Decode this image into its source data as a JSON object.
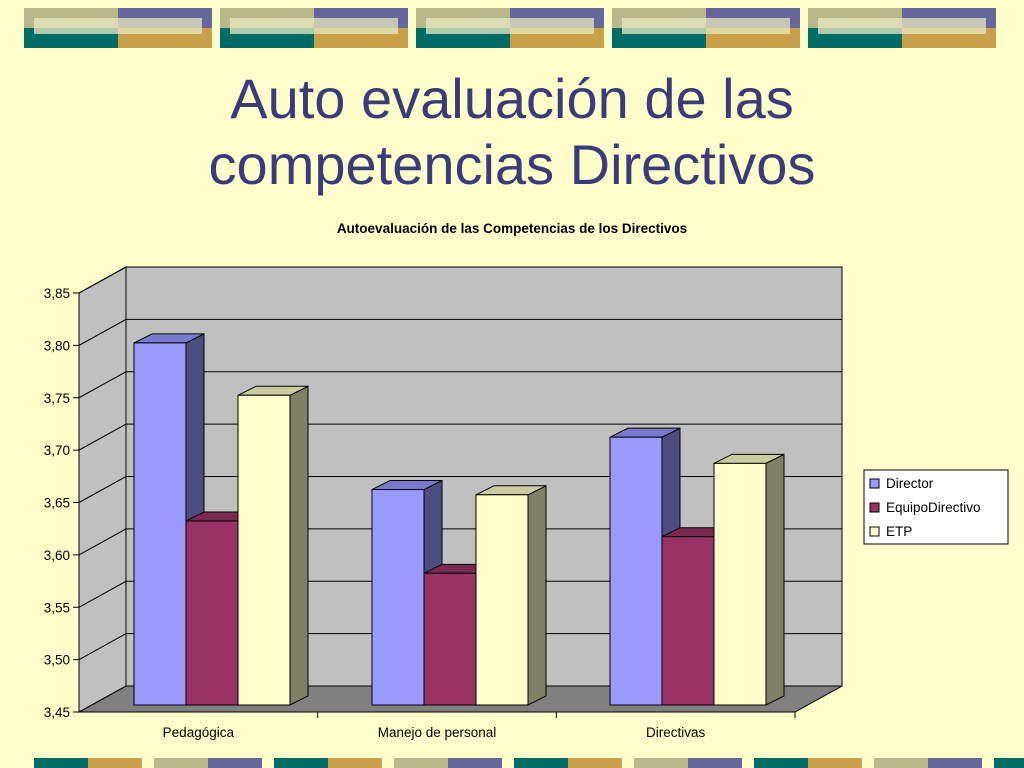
{
  "slide": {
    "title_line1": "Auto evaluación de las",
    "title_line2": "competencias Directivos"
  },
  "chart_data": {
    "type": "bar",
    "title": "Autoevaluación de las Competencias de los Directivos",
    "categories": [
      "Pedagógica",
      "Manejo de personal",
      "Directivas"
    ],
    "series": [
      {
        "name": "Director",
        "values": [
          3.81,
          3.67,
          3.72
        ],
        "color": "#9999FF"
      },
      {
        "name": "EquipoDirectivo",
        "values": [
          3.64,
          3.59,
          3.625
        ],
        "color": "#993366"
      },
      {
        "name": "ETP",
        "values": [
          3.76,
          3.665,
          3.695
        ],
        "color": "#FFFFCC"
      }
    ],
    "ylim": [
      3.45,
      3.85
    ],
    "yticks": [
      "3,45",
      "3,50",
      "3,55",
      "3,60",
      "3,65",
      "3,70",
      "3,75",
      "3,80",
      "3,85"
    ],
    "grid": true,
    "legend": "right",
    "three_d": true,
    "wall_color": "#C0C0C0",
    "floor_color": "#808080"
  }
}
